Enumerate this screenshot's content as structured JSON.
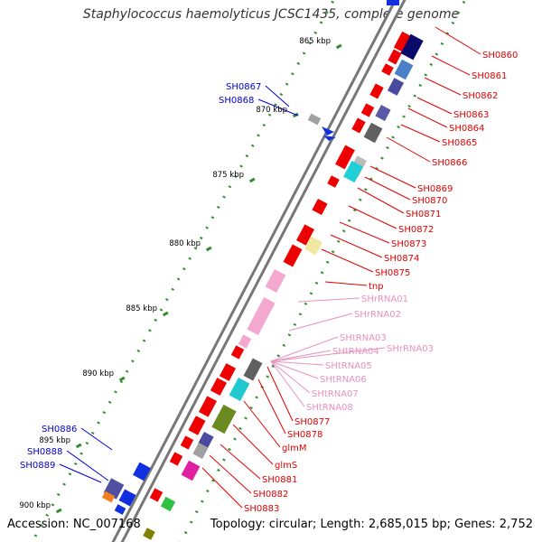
{
  "title": "Staphylococcus haemolyticus JCSC1435, complete genome",
  "footer": {
    "accession": "Accession: NC_007168",
    "topology": "Topology: circular; Length: 2,685,015 bp; Genes: 2,752"
  },
  "colors": {
    "backbone": "#8a8a8a",
    "tick": "#2f8f2f",
    "red_label": "#e00000",
    "blue_label": "#0000d0",
    "pink_label": "#e890c0"
  },
  "kbp_marks": [
    "865 kbp",
    "870 kbp",
    "875 kbp",
    "880 kbp",
    "885 kbp",
    "890 kbp",
    "895 kbp",
    "900 kbp"
  ],
  "right_labels": [
    "SH0860",
    "SH0861",
    "SH0862",
    "SH0863",
    "SH0864",
    "SH0865",
    "SH0866",
    "SH0869",
    "SH0870",
    "SH0871",
    "SH0872",
    "SH0873",
    "SH0874",
    "SH0875",
    "tnp"
  ],
  "rna_labels": [
    "SHrRNA01",
    "SHrRNA02",
    "SHtRNA03",
    "SHtRNA04",
    "SHrRNA03",
    "SHtRNA05",
    "SHtRNA06",
    "SHtRNA07",
    "SHtRNA08"
  ],
  "right_labels_lower": [
    "SH0877",
    "SH0878",
    "glmM",
    "glmS",
    "SH0881",
    "SH0882",
    "SH0883"
  ],
  "left_labels": [
    "SH0867",
    "SH0868",
    "SH0886",
    "SH0888",
    "SH0889"
  ]
}
